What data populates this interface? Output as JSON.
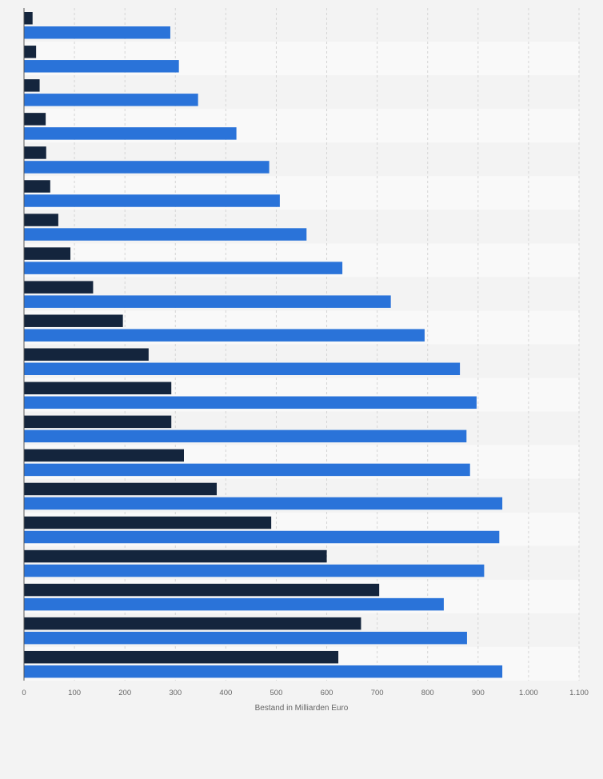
{
  "chart_data": {
    "type": "bar",
    "orientation": "horizontal",
    "xlabel": "Bestand in Milliarden Euro",
    "xlim": [
      0,
      1100
    ],
    "x_ticks": [
      0,
      100,
      200,
      300,
      400,
      500,
      600,
      700,
      800,
      900,
      1000,
      1100
    ],
    "x_tick_labels": [
      "0",
      "100",
      "200",
      "300",
      "400",
      "500",
      "600",
      "700",
      "800",
      "900",
      "1.000",
      "1.100"
    ],
    "grid": true,
    "legend": "none",
    "series": [
      {
        "color": "#14253d",
        "values": [
          17,
          24,
          31,
          43,
          44,
          52,
          68,
          92,
          137,
          196,
          247,
          292,
          292,
          317,
          382,
          490,
          600,
          704,
          668,
          623
        ]
      },
      {
        "color": "#2a73d9",
        "values": [
          290,
          307,
          345,
          421,
          486,
          507,
          560,
          631,
          727,
          794,
          864,
          897,
          877,
          884,
          948,
          942,
          912,
          832,
          878,
          948
        ]
      }
    ]
  },
  "colors": {
    "page_background": "#f3f3f3",
    "plot_band_light": "#f9f9f9",
    "plot_band_dark": "#f3f3f3",
    "grid": "#d5d5d5",
    "axis": "#555555",
    "tick_label": "#666666"
  }
}
